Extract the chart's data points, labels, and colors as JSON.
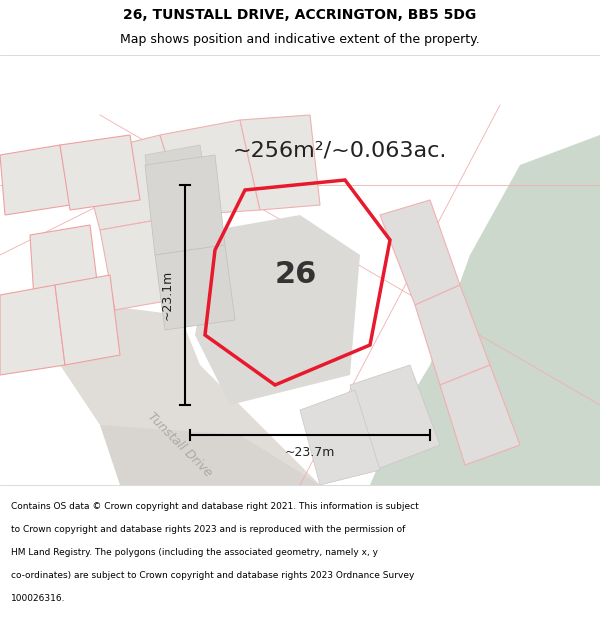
{
  "title_line1": "26, TUNSTALL DRIVE, ACCRINGTON, BB5 5DG",
  "title_line2": "Map shows position and indicative extent of the property.",
  "area_text": "~256m²/~0.063ac.",
  "property_number": "26",
  "measure_vertical": "~23.1m",
  "measure_horizontal": "~23.7m",
  "road_label": "Tunstall Drive",
  "footer_text": "Contains OS data © Crown copyright and database right 2021. This information is subject to Crown copyright and database rights 2023 and is reproduced with the permission of HM Land Registry. The polygons (including the associated geometry, namely x, y co-ordinates) are subject to Crown copyright and database rights 2023 Ordnance Survey 100026316.",
  "bg_color": "#f5f3f0",
  "map_bg": "#ffffff",
  "green_color": "#ccd8cc",
  "road_fill": "#e8e4e0",
  "plot_fill": "#dcdad8",
  "red_outline": "#e8192c",
  "footer_bg": "#ffffff",
  "title_bg": "#ffffff"
}
